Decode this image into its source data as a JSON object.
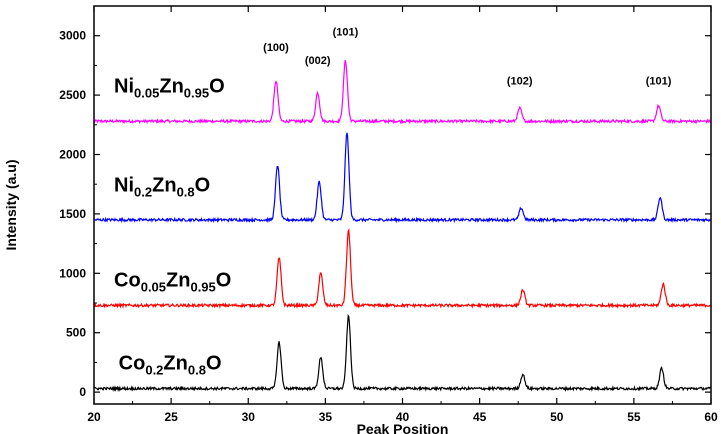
{
  "chart_data": {
    "type": "line",
    "xlabel": "Peak Position",
    "ylabel": "Intensity (a.u)",
    "xlim": [
      20,
      60
    ],
    "ylim": [
      -100,
      3250
    ],
    "xticks": [
      20,
      25,
      30,
      35,
      40,
      45,
      50,
      55,
      60
    ],
    "yticks": [
      0,
      500,
      1000,
      1500,
      2000,
      2500,
      3000
    ],
    "grid": false,
    "series": [
      {
        "name": "Ni0.05Zn0.95O",
        "label_parts": [
          [
            "Ni",
            ""
          ],
          [
            "0.05",
            "sub"
          ],
          [
            "Zn",
            ""
          ],
          [
            "0.95",
            "sub"
          ],
          [
            "O",
            ""
          ]
        ],
        "color": "#ff00ff",
        "baseline": 2280,
        "peaks": [
          [
            31.8,
            2620
          ],
          [
            34.5,
            2520
          ],
          [
            36.3,
            2790
          ],
          [
            47.6,
            2390
          ],
          [
            56.6,
            2410
          ]
        ]
      },
      {
        "name": "Ni0.2Zn0.8O",
        "label_parts": [
          [
            "Ni",
            ""
          ],
          [
            "0.2",
            "sub"
          ],
          [
            "Zn",
            ""
          ],
          [
            "0.8",
            "sub"
          ],
          [
            "O",
            ""
          ]
        ],
        "color": "#0000ff",
        "baseline": 1450,
        "peaks": [
          [
            31.9,
            1910
          ],
          [
            34.6,
            1770
          ],
          [
            36.4,
            2180
          ],
          [
            47.7,
            1550
          ],
          [
            56.7,
            1640
          ]
        ]
      },
      {
        "name": "Co0.05Zn0.95O",
        "label_parts": [
          [
            "Co",
            ""
          ],
          [
            "0.05",
            "sub"
          ],
          [
            "Zn",
            ""
          ],
          [
            "0.95",
            "sub"
          ],
          [
            "O",
            ""
          ]
        ],
        "color": "#ff0000",
        "baseline": 730,
        "peaks": [
          [
            32.0,
            1130
          ],
          [
            34.7,
            1000
          ],
          [
            36.5,
            1360
          ],
          [
            47.8,
            860
          ],
          [
            56.9,
            910
          ]
        ]
      },
      {
        "name": "Co0.2Zn0.8O",
        "label_parts": [
          [
            "Co",
            ""
          ],
          [
            "0.2",
            "sub"
          ],
          [
            "Zn",
            ""
          ],
          [
            "0.8",
            "sub"
          ],
          [
            "O",
            ""
          ]
        ],
        "color": "#000000",
        "baseline": 30,
        "peaks": [
          [
            32.0,
            420
          ],
          [
            34.7,
            290
          ],
          [
            36.5,
            640
          ],
          [
            47.8,
            150
          ],
          [
            56.8,
            200
          ]
        ]
      }
    ],
    "annotations": [
      {
        "text": "(100)",
        "x": 31.8,
        "y": 2870
      },
      {
        "text": "(002)",
        "x": 34.5,
        "y": 2760
      },
      {
        "text": "(101)",
        "x": 36.3,
        "y": 3000
      },
      {
        "text": "(102)",
        "x": 47.6,
        "y": 2590
      },
      {
        "text": "(101)",
        "x": 56.6,
        "y": 2590
      }
    ],
    "series_label_positions": [
      {
        "x": 21.3,
        "y": 2520
      },
      {
        "x": 21.3,
        "y": 1690
      },
      {
        "x": 21.3,
        "y": 890
      },
      {
        "x": 21.6,
        "y": 190
      }
    ]
  }
}
